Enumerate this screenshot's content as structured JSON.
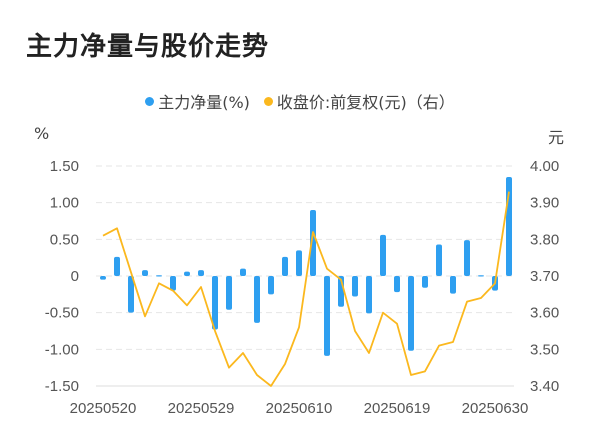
{
  "title": "主力净量与股价走势",
  "legend": [
    {
      "label": "主力净量(%)",
      "color": "#2e9ff0"
    },
    {
      "label": "收盘价:前复权(元)（右）",
      "color": "#fbb81e"
    }
  ],
  "left_unit": "%",
  "right_unit": "元",
  "chart_data": {
    "type": "bar+line",
    "x_tick_labels": [
      "20250520",
      "20250529",
      "20250610",
      "20250619",
      "20250630"
    ],
    "x_tick_indices": [
      0,
      7,
      14,
      21,
      28
    ],
    "left_axis": {
      "ylim": [
        -1.5,
        1.5
      ],
      "ticks": [
        "1.50",
        "1.00",
        "0.50",
        "0",
        "-0.50",
        "-1.00",
        "-1.50"
      ],
      "unit": "%"
    },
    "right_axis": {
      "ylim": [
        3.4,
        4.0
      ],
      "ticks": [
        "4.00",
        "3.90",
        "3.80",
        "3.70",
        "3.60",
        "3.50",
        "3.40"
      ],
      "unit": "元"
    },
    "grid": true,
    "legend_position": "top-center",
    "series": [
      {
        "name": "主力净量(%)",
        "type": "bar",
        "axis": "left",
        "color": "#2e9ff0",
        "values": [
          -0.05,
          0.26,
          -0.5,
          0.08,
          0.01,
          -0.2,
          0.06,
          0.08,
          -0.73,
          -0.46,
          0.1,
          -0.64,
          -0.25,
          0.26,
          0.35,
          0.9,
          -1.09,
          -0.42,
          -0.28,
          -0.51,
          0.56,
          -0.22,
          -1.02,
          -0.16,
          0.43,
          -0.24,
          0.49,
          0.01,
          -0.2,
          1.35
        ]
      },
      {
        "name": "收盘价:前复权(元)（右）",
        "type": "line",
        "axis": "right",
        "color": "#fbb81e",
        "values": [
          3.81,
          3.83,
          3.71,
          3.59,
          3.68,
          3.66,
          3.62,
          3.67,
          3.55,
          3.45,
          3.49,
          3.43,
          3.4,
          3.46,
          3.56,
          3.82,
          3.72,
          3.69,
          3.55,
          3.49,
          3.6,
          3.57,
          3.43,
          3.44,
          3.51,
          3.52,
          3.63,
          3.64,
          3.68,
          3.93
        ]
      }
    ]
  }
}
